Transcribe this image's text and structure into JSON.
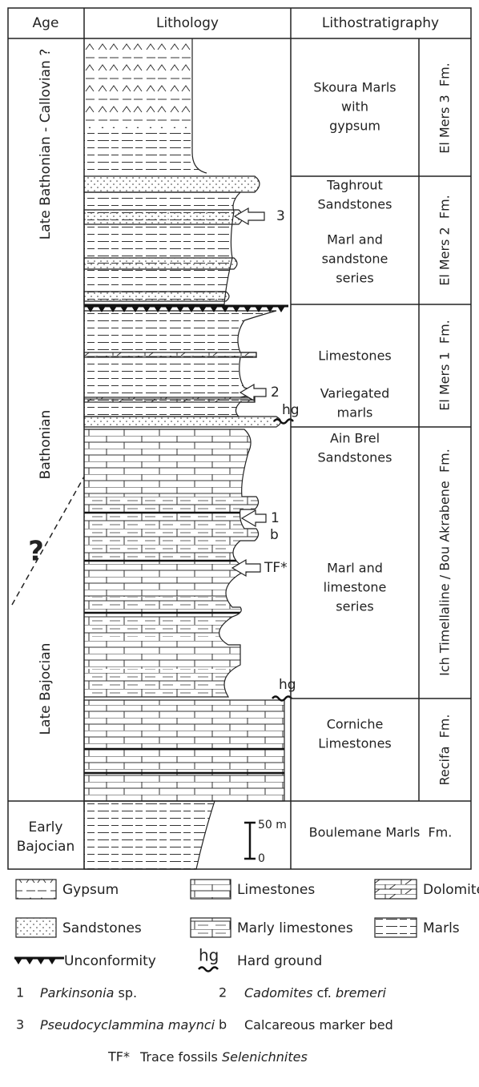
{
  "header": {
    "age": "Age",
    "lithology": "Lithology",
    "lithostratigraphy": "Lithostratigraphy"
  },
  "ages": [
    "Late Bathonian - Callovian ?",
    "Bathonian",
    "?",
    "Late Bajocian"
  ],
  "early_age": [
    "Early",
    "Bajocian"
  ],
  "units": [
    [
      "Skoura Marls",
      "with",
      "gypsum"
    ],
    [
      "Taghrout",
      "Sandstones"
    ],
    [
      "Marl and",
      "sandstone",
      "series"
    ],
    [
      "Limestones"
    ],
    [
      "Variegated",
      "marls"
    ],
    [
      "Ain Brel",
      "Sandstones"
    ],
    [
      "Marl and",
      "limestone",
      "series"
    ],
    [
      "Corniche",
      "Limestones"
    ]
  ],
  "formations": [
    "El Mers 3  Fm.",
    "El Mers 2  Fm.",
    "El Mers 1  Fm.",
    "Ich Timellaline / Bou Akrabene  Fm.",
    "Recifa  Fm."
  ],
  "bottom_formation": "Boulemane Marls  Fm.",
  "markers": [
    "3",
    "2",
    "hg",
    "1",
    "b",
    "TF*",
    "hg"
  ],
  "scale": [
    "50 m",
    "0"
  ],
  "legend": [
    "Gypsum",
    "Limestones",
    "Dolomites",
    "Sandstones",
    "Marly limestones",
    "Marls",
    "Unconformity",
    "hg",
    "Hard ground"
  ],
  "notes": [
    {
      "key": "1",
      "text": [
        {
          "t": "Parkinsonia",
          "italic": true
        },
        {
          "t": " sp."
        }
      ]
    },
    {
      "key": "2",
      "text": [
        {
          "t": "Cadomites",
          "italic": true
        },
        {
          "t": " cf. "
        },
        {
          "t": "bremeri",
          "italic": true
        }
      ]
    },
    {
      "key": "3",
      "text": [
        {
          "t": "Pseudocyclammina maynci",
          "italic": true
        }
      ]
    },
    {
      "key": "b",
      "text": [
        {
          "t": "Calcareous marker bed"
        }
      ]
    },
    {
      "key": "TF*",
      "text": [
        {
          "t": "Trace fossils "
        },
        {
          "t": "Selenichnites",
          "italic": true
        }
      ]
    }
  ]
}
